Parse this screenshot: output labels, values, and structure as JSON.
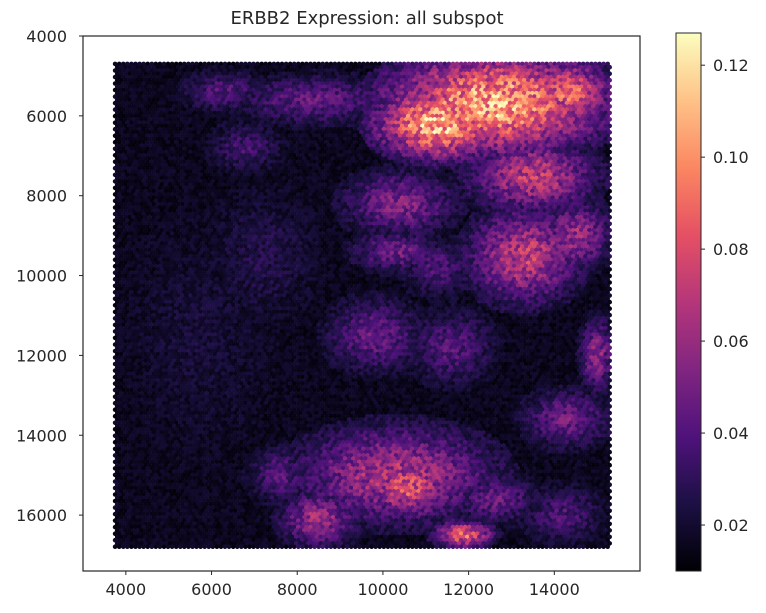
{
  "chart_data": {
    "type": "heatmap",
    "title": "ERBB2 Expression: all subspot",
    "xlabel": "",
    "ylabel": "",
    "xlim": [
      3000,
      16000
    ],
    "ylim": [
      17400,
      4000
    ],
    "x_ticks": [
      4000,
      6000,
      8000,
      10000,
      12000,
      14000
    ],
    "y_ticks": [
      4000,
      6000,
      8000,
      10000,
      12000,
      14000,
      16000
    ],
    "tick_labels_x": [
      "4000",
      "6000",
      "8000",
      "10000",
      "12000",
      "14000"
    ],
    "tick_labels_y": [
      "4000",
      "6000",
      "8000",
      "10000",
      "12000",
      "14000",
      "16000"
    ],
    "colormap": "magma",
    "grid": false,
    "colorbar": {
      "range": [
        0.01,
        0.127
      ],
      "ticks": [
        0.02,
        0.04,
        0.06,
        0.08,
        0.1,
        0.12
      ],
      "tick_labels": [
        "0.02",
        "0.04",
        "0.06",
        "0.08",
        "0.10",
        "0.12"
      ]
    },
    "spot_extent": {
      "x": [
        3750,
        15300
      ],
      "y": [
        4700,
        16800
      ]
    },
    "regions": [
      {
        "cx": 12600,
        "cy": 5700,
        "rx": 2600,
        "ry": 1300,
        "value": 0.105
      },
      {
        "cx": 11300,
        "cy": 6200,
        "rx": 1500,
        "ry": 900,
        "value": 0.11
      },
      {
        "cx": 14300,
        "cy": 5400,
        "rx": 1100,
        "ry": 800,
        "value": 0.085
      },
      {
        "cx": 13500,
        "cy": 7500,
        "rx": 1500,
        "ry": 900,
        "value": 0.07
      },
      {
        "cx": 13300,
        "cy": 9500,
        "rx": 1300,
        "ry": 1200,
        "value": 0.07
      },
      {
        "cx": 14500,
        "cy": 9000,
        "rx": 800,
        "ry": 900,
        "value": 0.06
      },
      {
        "cx": 10400,
        "cy": 8200,
        "rx": 1300,
        "ry": 800,
        "value": 0.052
      },
      {
        "cx": 10300,
        "cy": 9400,
        "rx": 1000,
        "ry": 500,
        "value": 0.048
      },
      {
        "cx": 11300,
        "cy": 9800,
        "rx": 800,
        "ry": 700,
        "value": 0.038
      },
      {
        "cx": 8400,
        "cy": 5600,
        "rx": 1700,
        "ry": 600,
        "value": 0.045
      },
      {
        "cx": 6300,
        "cy": 5400,
        "rx": 900,
        "ry": 500,
        "value": 0.04
      },
      {
        "cx": 6800,
        "cy": 6800,
        "rx": 800,
        "ry": 600,
        "value": 0.035
      },
      {
        "cx": 9800,
        "cy": 11500,
        "rx": 1100,
        "ry": 900,
        "value": 0.045
      },
      {
        "cx": 11600,
        "cy": 11800,
        "rx": 1000,
        "ry": 900,
        "value": 0.04
      },
      {
        "cx": 14300,
        "cy": 13600,
        "rx": 1000,
        "ry": 700,
        "value": 0.048
      },
      {
        "cx": 15000,
        "cy": 12000,
        "rx": 400,
        "ry": 900,
        "value": 0.055
      },
      {
        "cx": 10300,
        "cy": 15000,
        "rx": 2300,
        "ry": 1200,
        "value": 0.065
      },
      {
        "cx": 10600,
        "cy": 15300,
        "rx": 1000,
        "ry": 800,
        "value": 0.08
      },
      {
        "cx": 11900,
        "cy": 16500,
        "rx": 700,
        "ry": 350,
        "value": 0.085
      },
      {
        "cx": 8500,
        "cy": 16100,
        "rx": 900,
        "ry": 700,
        "value": 0.06
      },
      {
        "cx": 12600,
        "cy": 15600,
        "rx": 1000,
        "ry": 600,
        "value": 0.045
      },
      {
        "cx": 14200,
        "cy": 16000,
        "rx": 900,
        "ry": 700,
        "value": 0.038
      },
      {
        "cx": 7600,
        "cy": 15000,
        "rx": 700,
        "ry": 700,
        "value": 0.04
      },
      {
        "cx": 5700,
        "cy": 11500,
        "rx": 1500,
        "ry": 2500,
        "value": 0.022
      },
      {
        "cx": 7200,
        "cy": 9500,
        "rx": 1200,
        "ry": 1500,
        "value": 0.026
      }
    ]
  }
}
